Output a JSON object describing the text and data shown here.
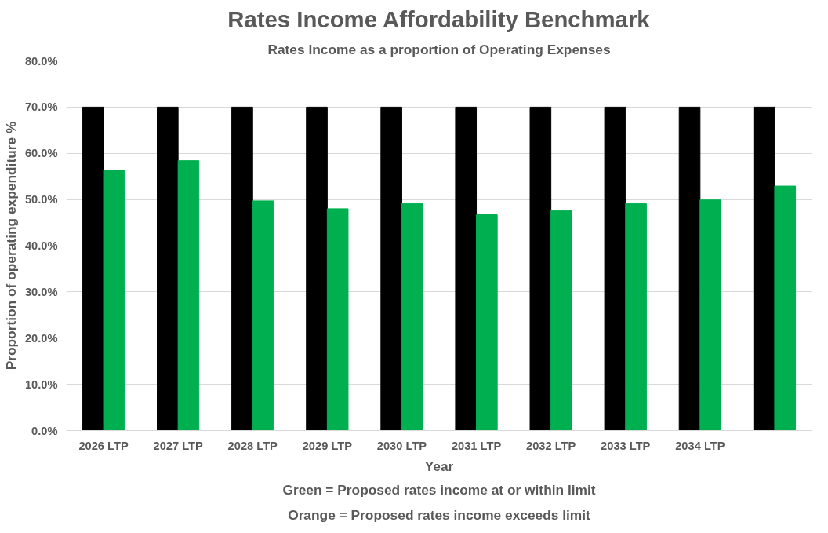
{
  "chart_data": {
    "type": "bar",
    "title": "Rates Income Affordability Benchmark",
    "subtitle": "Rates Income as a proportion of Operating Expenses",
    "xlabel": "Year",
    "ylabel": "Proportion of operating expenditure %",
    "categories": [
      "2026 LTP",
      "2027 LTP",
      "2028 LTP",
      "2029 LTP",
      "2030 LTP",
      "2031 LTP",
      "2032 LTP",
      "2033 LTP",
      "2034 LTP",
      null
    ],
    "series": [
      {
        "color": "#000000",
        "values": [
          70,
          70,
          70,
          70,
          70,
          70,
          70,
          70,
          70,
          70
        ]
      },
      {
        "color": "#00b050",
        "values": [
          56.3,
          58.4,
          49.7,
          48.0,
          49.1,
          46.7,
          47.6,
          49.1,
          49.9,
          52.9
        ]
      }
    ],
    "ylim": [
      0,
      80
    ],
    "yticks": [
      {
        "value": 0,
        "label": "0.0%"
      },
      {
        "value": 10,
        "label": "10.0%"
      },
      {
        "value": 20,
        "label": "20.0%"
      },
      {
        "value": 30,
        "label": "30.0%"
      },
      {
        "value": 40,
        "label": "40.0%"
      },
      {
        "value": 50,
        "label": "50.0%"
      },
      {
        "value": 60,
        "label": "60.0%"
      },
      {
        "value": 70,
        "label": "70.0%"
      },
      {
        "value": 80,
        "label": "80.0%"
      }
    ],
    "grid": "y",
    "annotations": [
      "Green = Proposed rates income at or within limit",
      "Orange = Proposed rates income exceeds limit"
    ]
  }
}
